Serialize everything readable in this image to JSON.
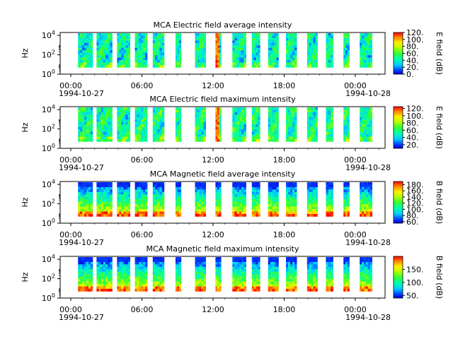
{
  "chart_data": [
    {
      "type": "heatmap",
      "title": "MCA  Electric field average intensity",
      "ylabel": "Hz",
      "y_ticks": [
        {
          "exp": "0"
        },
        {
          "exp": "2"
        },
        {
          "exp": "4"
        }
      ],
      "x_ticks": [
        "00:00",
        "06:00",
        "12:00",
        "18:00",
        "00:00"
      ],
      "x_start_date": "1994-10-27",
      "x_end_date": "1994-10-28",
      "colorbar_label": "E field (dB)",
      "colorbar_range": [
        0,
        120
      ],
      "colorbar_ticks": [
        "0.",
        "20.",
        "40.",
        "60.",
        "80.",
        "100.",
        "120."
      ],
      "palette": "rainbow",
      "scale": "log",
      "ylim": [
        1,
        20000
      ]
    },
    {
      "type": "heatmap",
      "title": "MCA  Electric field maximum intensity",
      "ylabel": "Hz",
      "y_ticks": [
        {
          "exp": "0"
        },
        {
          "exp": "2"
        },
        {
          "exp": "4"
        }
      ],
      "x_ticks": [
        "00:00",
        "06:00",
        "12:00",
        "18:00",
        "00:00"
      ],
      "x_start_date": "1994-10-27",
      "x_end_date": "1994-10-28",
      "colorbar_label": "E field (dB)",
      "colorbar_range": [
        10,
        125
      ],
      "colorbar_ticks": [
        "20.",
        "40.",
        "60.",
        "80.",
        "100.",
        "120."
      ],
      "palette": "rainbow",
      "scale": "log",
      "ylim": [
        1,
        20000
      ]
    },
    {
      "type": "heatmap",
      "title": "MCA  Magnetic field average intensity",
      "ylabel": "Hz",
      "y_ticks": [
        {
          "exp": "0"
        },
        {
          "exp": "2"
        },
        {
          "exp": "4"
        }
      ],
      "x_ticks": [
        "00:00",
        "06:00",
        "12:00",
        "18:00",
        "00:00"
      ],
      "x_start_date": "1994-10-27",
      "x_end_date": "1994-10-28",
      "colorbar_label": "B field (dB)",
      "colorbar_range": [
        55,
        190
      ],
      "colorbar_ticks": [
        "60.",
        "80.",
        "100.",
        "120.",
        "140.",
        "160.",
        "180."
      ],
      "palette": "rainbow",
      "scale": "log",
      "ylim": [
        1,
        20000
      ]
    },
    {
      "type": "heatmap",
      "title": "MCA  Magnetic field maximum intensity",
      "ylabel": "Hz",
      "y_ticks": [
        {
          "exp": "0"
        },
        {
          "exp": "2"
        },
        {
          "exp": "4"
        }
      ],
      "x_ticks": [
        "00:00",
        "06:00",
        "12:00",
        "18:00",
        "00:00"
      ],
      "x_start_date": "1994-10-27",
      "x_end_date": "1994-10-28",
      "colorbar_label": "B field (dB)",
      "colorbar_range": [
        40,
        200
      ],
      "colorbar_ticks": [
        "50.",
        "100.",
        "150."
      ],
      "palette": "rainbow",
      "scale": "log",
      "ylim": [
        1,
        20000
      ]
    }
  ]
}
